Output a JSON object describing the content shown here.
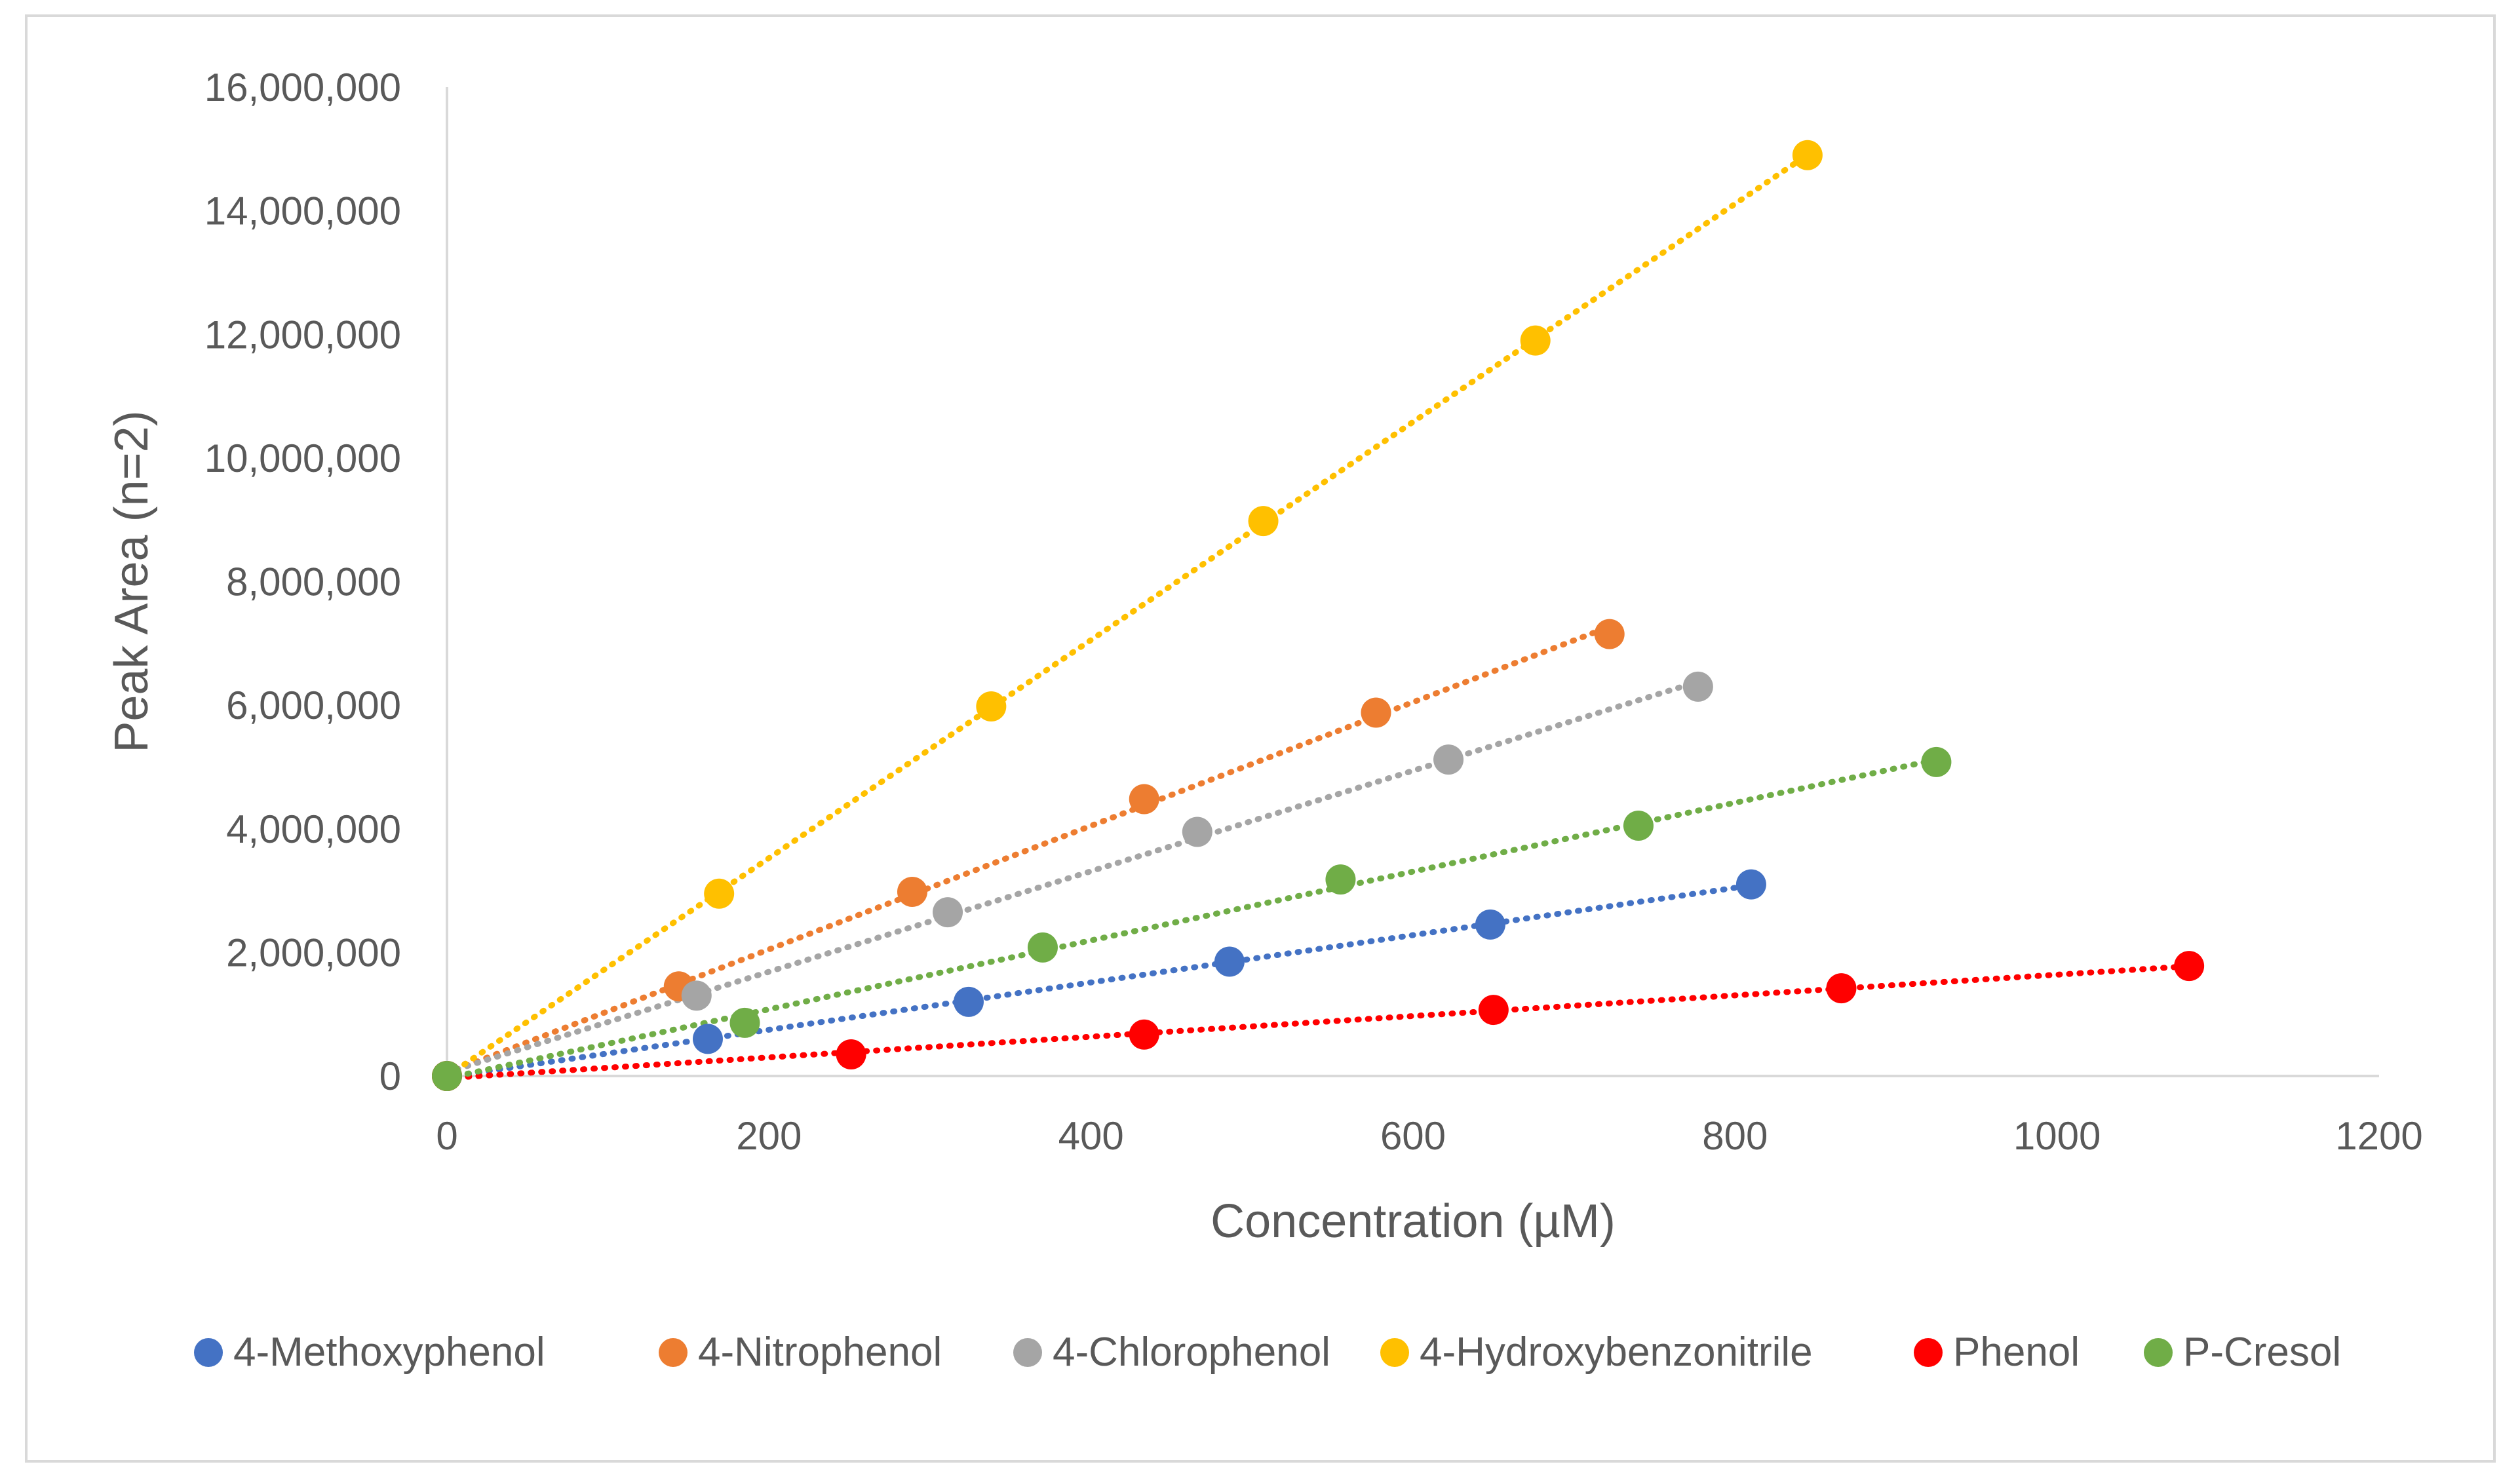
{
  "chart_data": {
    "type": "scatter",
    "title": "",
    "xlabel": "Concentration (µM)",
    "ylabel": "Peak Area (n=2)",
    "xlim": [
      0,
      1200
    ],
    "ylim": [
      0,
      16000000
    ],
    "x_ticks": [
      "0",
      "200",
      "400",
      "600",
      "800",
      "1000",
      "1200"
    ],
    "y_ticks": [
      "0",
      "2,000,000",
      "4,000,000",
      "6,000,000",
      "8,000,000",
      "10,000,000",
      "12,000,000",
      "14,000,000",
      "16,000,000"
    ],
    "grid": false,
    "legend_position": "bottom",
    "trendlines": "linear dotted",
    "series": [
      {
        "name": "4-Methoxyphenol",
        "color": "#4472C4",
        "points": [
          [
            0,
            0
          ],
          [
            162,
            600000
          ],
          [
            324,
            1200000
          ],
          [
            486,
            1850000
          ],
          [
            648,
            2450000
          ],
          [
            810,
            3100000
          ]
        ]
      },
      {
        "name": "4-Nitrophenol",
        "color": "#ED7D31",
        "points": [
          [
            0,
            0
          ],
          [
            144,
            1450000
          ],
          [
            289,
            2980000
          ],
          [
            433,
            4480000
          ],
          [
            577,
            5880000
          ],
          [
            722,
            7150000
          ]
        ]
      },
      {
        "name": "4-Chlorophenol",
        "color": "#A5A5A5",
        "points": [
          [
            0,
            0
          ],
          [
            155,
            1300000
          ],
          [
            311,
            2650000
          ],
          [
            466,
            3950000
          ],
          [
            622,
            5120000
          ],
          [
            777,
            6300000
          ]
        ]
      },
      {
        "name": "4-Hydroxybenzonitrile",
        "color": "#FFC000",
        "points": [
          [
            0,
            0
          ],
          [
            169,
            2950000
          ],
          [
            338,
            5980000
          ],
          [
            507,
            8980000
          ],
          [
            676,
            11900000
          ],
          [
            845,
            14900000
          ]
        ]
      },
      {
        "name": "Phenol",
        "color": "#FF0000",
        "points": [
          [
            0,
            0
          ],
          [
            251,
            350000
          ],
          [
            433,
            670000
          ],
          [
            650,
            1070000
          ],
          [
            866,
            1420000
          ],
          [
            1082,
            1780000
          ]
        ]
      },
      {
        "name": "P-Cresol",
        "color": "#70AD47",
        "points": [
          [
            0,
            0
          ],
          [
            185,
            860000
          ],
          [
            370,
            2080000
          ],
          [
            555,
            3180000
          ],
          [
            740,
            4050000
          ],
          [
            925,
            5080000
          ]
        ]
      }
    ]
  }
}
